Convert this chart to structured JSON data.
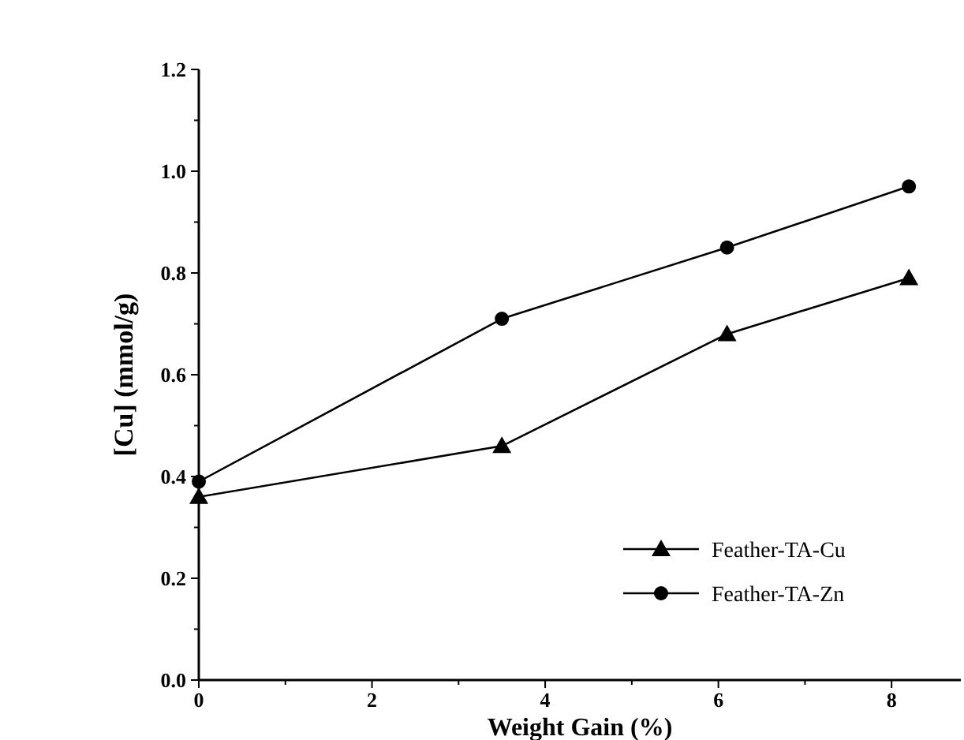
{
  "chart_data": {
    "type": "line",
    "xlabel": "Weight Gain (%)",
    "ylabel": "[Cu] (mmol/g)",
    "xlim": [
      0,
      8.8
    ],
    "xticks": [
      0,
      2,
      4,
      6,
      8
    ],
    "ylim": [
      0,
      1.2
    ],
    "yticks": [
      {
        "value": 0,
        "label": "0.0"
      },
      {
        "value": 0.2,
        "label": "0.2"
      },
      {
        "value": 0.4,
        "label": "0.4"
      },
      {
        "value": 0.6,
        "label": "0.6"
      },
      {
        "value": 0.8,
        "label": "0.8"
      },
      {
        "value": 1,
        "label": "1.0"
      },
      {
        "value": 1.2,
        "label": "1.2"
      }
    ],
    "grid": false,
    "legend": "bottom right",
    "line_style": "solid",
    "series": [
      {
        "name": "Feather-TA-Cu",
        "color": "#000000",
        "marker": "triangle",
        "x": [
          0,
          3.5,
          6.1,
          8.2
        ],
        "values": [
          0.36,
          0.46,
          0.68,
          0.79
        ]
      },
      {
        "name": "Feather-TA-Zn",
        "color": "#000000",
        "marker": "circle",
        "x": [
          0,
          3.5,
          6.1,
          8.2
        ],
        "values": [
          0.39,
          0.71,
          0.85,
          0.97
        ]
      }
    ]
  }
}
